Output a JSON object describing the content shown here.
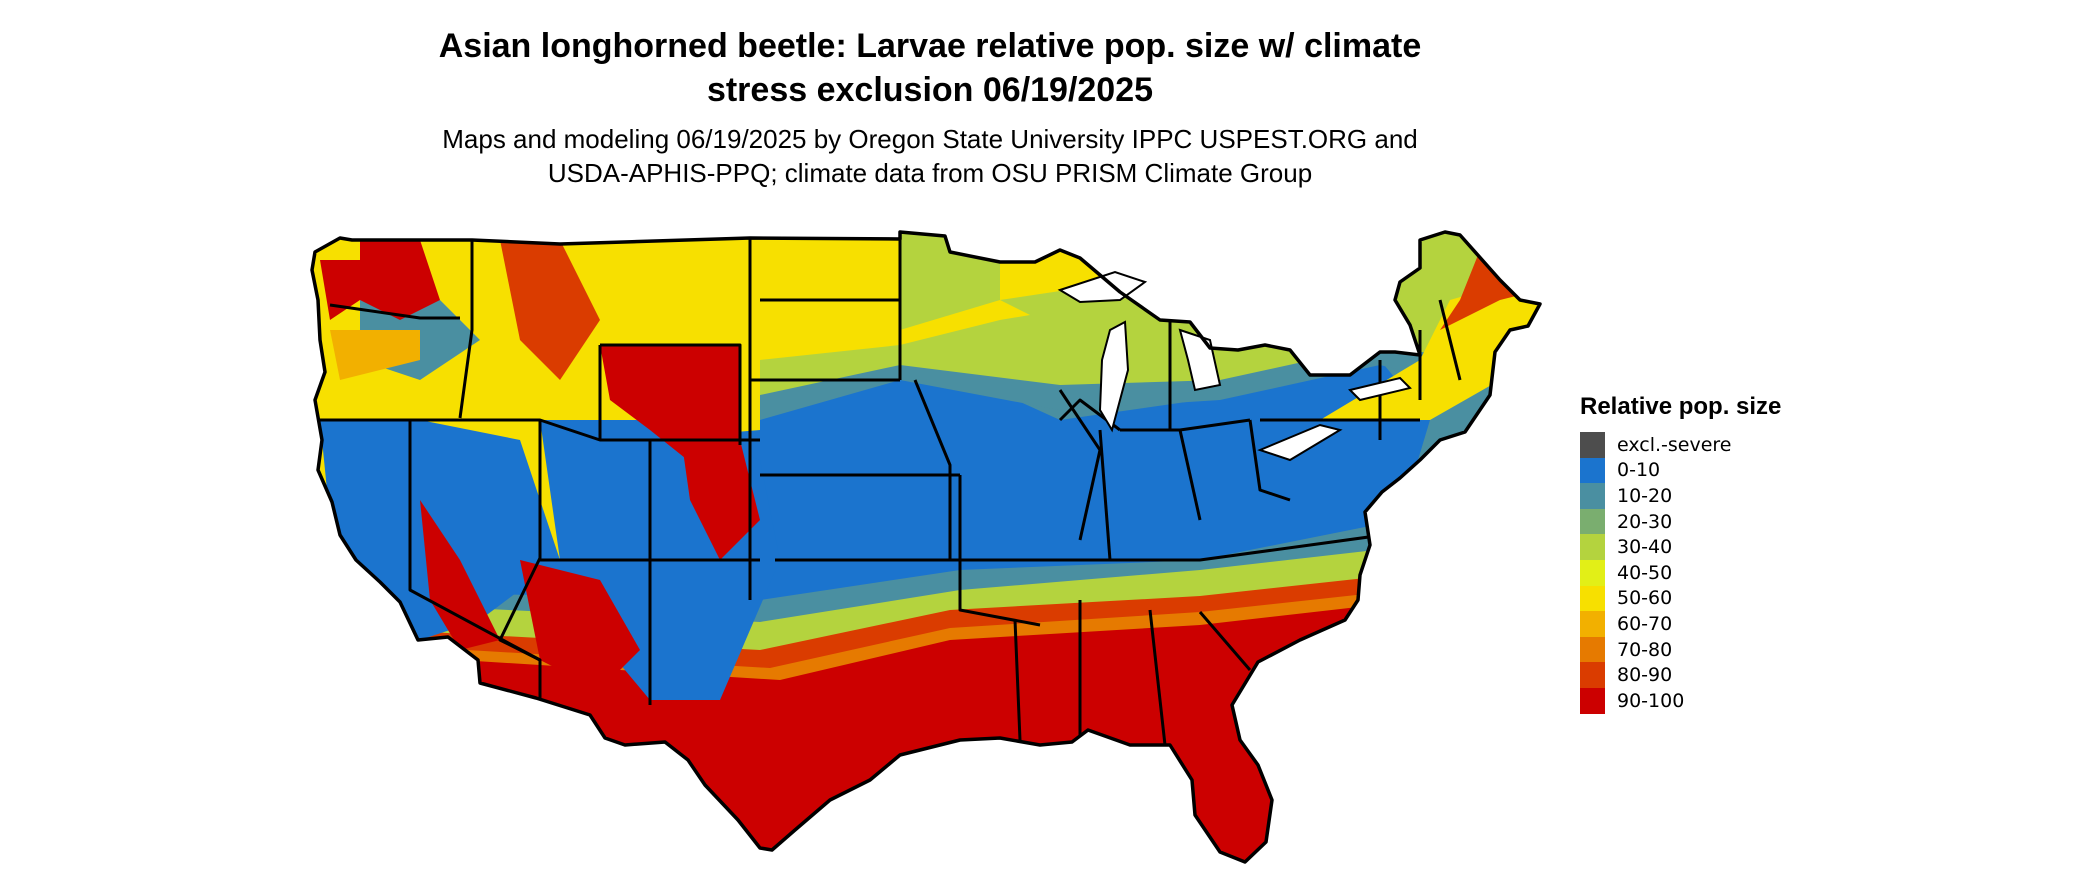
{
  "title": {
    "line1": "Asian longhorned beetle: Larvae relative pop. size w/ climate",
    "line2": "stress exclusion 06/19/2025"
  },
  "subtitle": {
    "line1": "Maps and modeling 06/19/2025 by Oregon State University IPPC USPEST.ORG and",
    "line2": "USDA-APHIS-PPQ; climate data from OSU PRISM Climate Group"
  },
  "legend": {
    "title": "Relative pop. size",
    "items": [
      {
        "label": "excl.-severe",
        "color": "#4d4d4d"
      },
      {
        "label": "0-10",
        "color": "#1b74ce"
      },
      {
        "label": "10-20",
        "color": "#4a8fa1"
      },
      {
        "label": "20-30",
        "color": "#7aae6f"
      },
      {
        "label": "30-40",
        "color": "#b4d33e"
      },
      {
        "label": "40-50",
        "color": "#e2ef17"
      },
      {
        "label": "50-60",
        "color": "#f7e000"
      },
      {
        "label": "60-70",
        "color": "#f2b000"
      },
      {
        "label": "70-80",
        "color": "#e67a00"
      },
      {
        "label": "80-90",
        "color": "#da3c00"
      },
      {
        "label": "90-100",
        "color": "#cc0000"
      }
    ]
  }
}
